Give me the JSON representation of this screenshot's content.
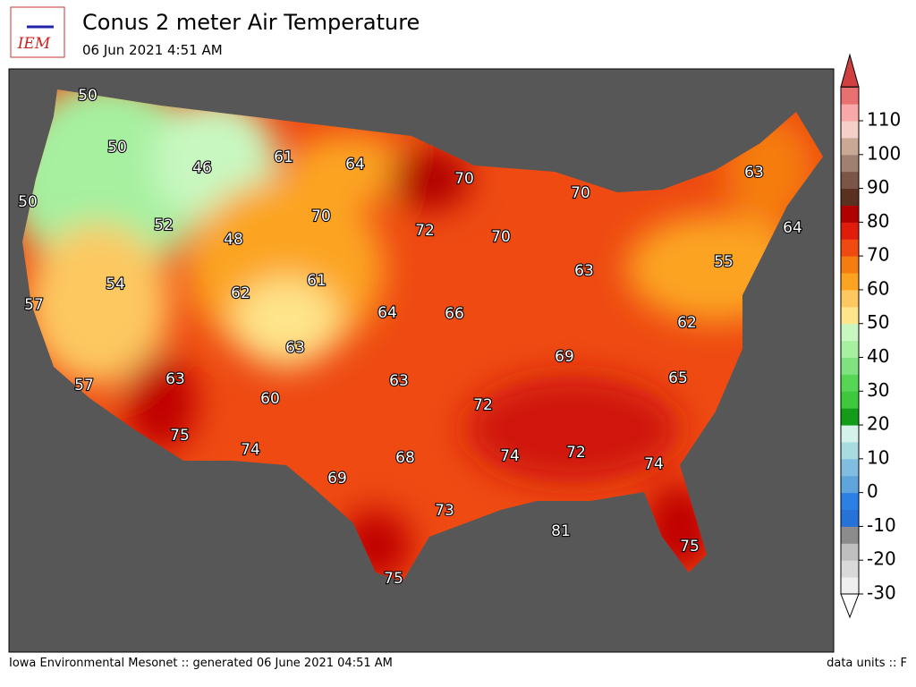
{
  "header": {
    "logo": "IEM",
    "title": "Conus 2 meter Air Temperature",
    "subtitle": "06 Jun 2021 4:51 AM"
  },
  "map": {
    "labels": [
      50,
      50,
      46,
      61,
      64,
      70,
      70,
      50,
      52,
      48,
      70,
      72,
      70,
      54,
      62,
      61,
      64,
      66,
      63,
      55,
      57,
      62,
      63,
      69,
      57,
      63,
      60,
      63,
      65,
      72,
      75,
      74,
      68,
      74,
      72,
      74,
      69,
      73,
      81,
      75,
      75,
      63,
      64
    ]
  },
  "colorbar": {
    "ticks": [
      -30,
      -20,
      -10,
      0,
      10,
      20,
      30,
      40,
      50,
      60,
      70,
      80,
      90,
      100,
      110
    ],
    "colors": [
      "#efefef",
      "#d9d9d9",
      "#bfbfbf",
      "#8c8c8c",
      "#2672d8",
      "#2a80e4",
      "#5fa5dc",
      "#80bde0",
      "#a9dce0",
      "#d4f2ea",
      "#139c1a",
      "#3ec83e",
      "#55d655",
      "#7fe27f",
      "#a6f0a0",
      "#c8f8c0",
      "#fee48a",
      "#fdc860",
      "#fca420",
      "#f57d10",
      "#f04a10",
      "#e01c0a",
      "#b00000",
      "#5a3020",
      "#7a5548",
      "#a08070",
      "#caa896",
      "#f5d0c8",
      "#f8a8a8",
      "#e87070"
    ]
  },
  "footer": {
    "left": "Iowa Environmental Mesonet :: generated 06 June 2021 04:51 AM",
    "right": "data units :: F"
  }
}
